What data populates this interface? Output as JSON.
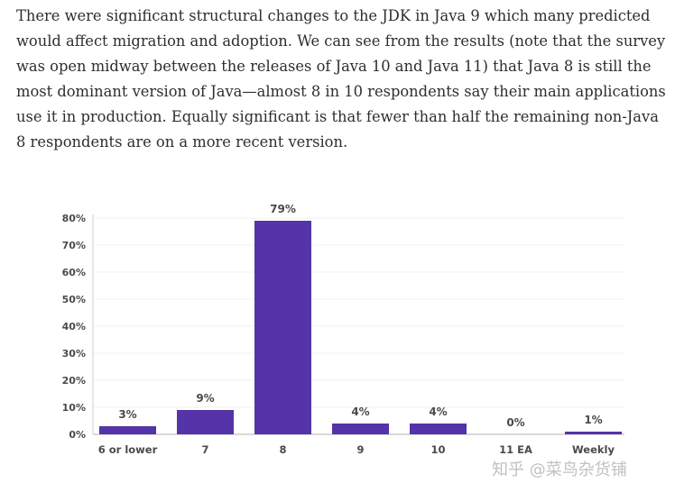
{
  "paragraph": "There were significant structural changes to the JDK in Java 9 which many predicted would affect migration and adoption. We can see from the results (note that the survey was open midway between the releases of Java 10 and Java 11) that Java 8 is still the most dominant version of Java—almost 8 in 10 respondents say their main applications use it in production. Equally significant is that fewer than half the remaining non-Java 8 respondents are on a more recent version.",
  "watermark": "知乎 @菜鸟杂货铺",
  "chart_data": {
    "type": "bar",
    "categories": [
      "6 or lower",
      "7",
      "8",
      "9",
      "10",
      "11 EA",
      "Weekly"
    ],
    "values": [
      3,
      9,
      79,
      4,
      4,
      0,
      1
    ],
    "data_labels": [
      "3%",
      "9%",
      "79%",
      "4%",
      "4%",
      "0%",
      "1%"
    ],
    "ylim": [
      0,
      80
    ],
    "yticks": [
      "0%",
      "10%",
      "20%",
      "30%",
      "40%",
      "50%",
      "60%",
      "70%",
      "80%"
    ],
    "grid": true,
    "bar_color": "#5533a8"
  }
}
